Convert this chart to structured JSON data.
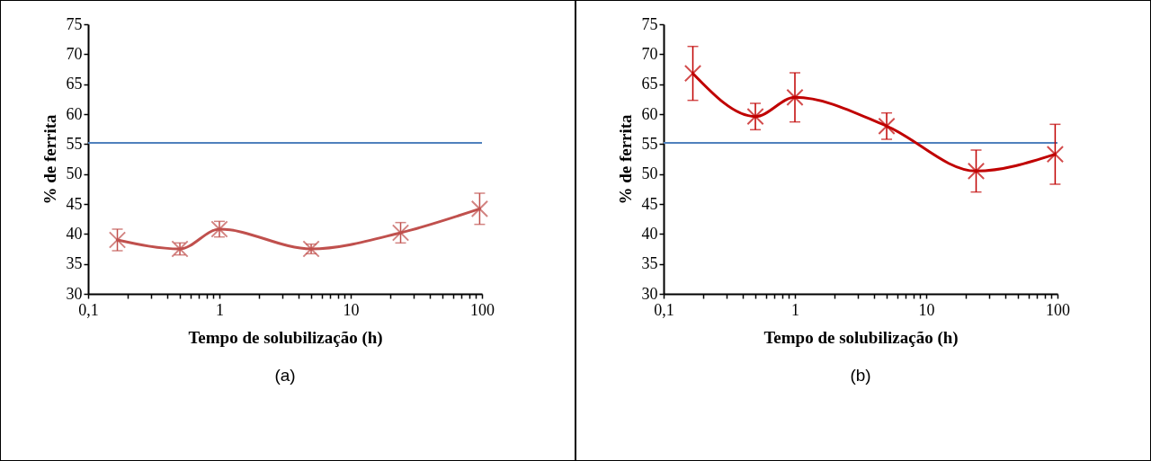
{
  "chart_data": [
    {
      "type": "line",
      "xlabel": "Tempo de solubilização (h)",
      "ylabel": "% de ferrita",
      "annotations": [
        "(a)"
      ],
      "log": "x",
      "marker": "cross",
      "line_style": "solid",
      "grid": false,
      "x": [
        0.167,
        0.5,
        1,
        5,
        24,
        96
      ],
      "series": [
        {
          "color": "#c0504d",
          "values": [
            39,
            37.5,
            40.8,
            37.5,
            40.2,
            44.2
          ],
          "errors": [
            1.8,
            1,
            1.3,
            0.8,
            1.7,
            2.6
          ]
        }
      ],
      "ref_lines": [
        {
          "axis": "y",
          "value": 55.2,
          "color": "#4f81bd"
        }
      ],
      "xlim": [
        0.1,
        100
      ],
      "xticks": [
        {
          "value": 0.1,
          "label": "0,1"
        },
        {
          "value": 0.2,
          "label": null
        },
        {
          "value": 0.3,
          "label": null
        },
        {
          "value": 0.4,
          "label": null
        },
        {
          "value": 0.5,
          "label": null
        },
        {
          "value": 0.6,
          "label": null
        },
        {
          "value": 0.7,
          "label": null
        },
        {
          "value": 0.8,
          "label": null
        },
        {
          "value": 0.9,
          "label": null
        },
        1,
        {
          "value": 2,
          "label": null
        },
        {
          "value": 3,
          "label": null
        },
        {
          "value": 4,
          "label": null
        },
        {
          "value": 5,
          "label": null
        },
        {
          "value": 6,
          "label": null
        },
        {
          "value": 7,
          "label": null
        },
        {
          "value": 8,
          "label": null
        },
        {
          "value": 9,
          "label": null
        },
        10,
        {
          "value": 20,
          "label": null
        },
        {
          "value": 30,
          "label": null
        },
        {
          "value": 40,
          "label": null
        },
        {
          "value": 50,
          "label": null
        },
        {
          "value": 60,
          "label": null
        },
        {
          "value": 70,
          "label": null
        },
        {
          "value": 80,
          "label": null
        },
        {
          "value": 90,
          "label": null
        },
        100
      ],
      "ylim": [
        30,
        75
      ],
      "yticks": [
        30,
        35,
        40,
        45,
        50,
        55,
        60,
        65,
        70,
        75
      ]
    },
    {
      "type": "line",
      "xlabel": "Tempo de solubilização (h)",
      "ylabel": "% de ferrita",
      "annotations": [
        "(b)"
      ],
      "log": "x",
      "marker": "cross",
      "line_style": "solid",
      "grid": false,
      "x": [
        0.167,
        0.5,
        1,
        5,
        24,
        96
      ],
      "series": [
        {
          "color": "#c00000",
          "values": [
            66.8,
            59.6,
            62.8,
            58,
            50.5,
            53.3
          ],
          "errors": [
            4.5,
            2.2,
            4.1,
            2.2,
            3.5,
            5
          ]
        }
      ],
      "ref_lines": [
        {
          "axis": "y",
          "value": 55.2,
          "color": "#4f81bd"
        }
      ],
      "xlim": [
        0.1,
        100
      ],
      "xticks": [
        {
          "value": 0.1,
          "label": "0,1"
        },
        {
          "value": 0.2,
          "label": null
        },
        {
          "value": 0.3,
          "label": null
        },
        {
          "value": 0.4,
          "label": null
        },
        {
          "value": 0.5,
          "label": null
        },
        {
          "value": 0.6,
          "label": null
        },
        {
          "value": 0.7,
          "label": null
        },
        {
          "value": 0.8,
          "label": null
        },
        {
          "value": 0.9,
          "label": null
        },
        1,
        {
          "value": 2,
          "label": null
        },
        {
          "value": 3,
          "label": null
        },
        {
          "value": 4,
          "label": null
        },
        {
          "value": 5,
          "label": null
        },
        {
          "value": 6,
          "label": null
        },
        {
          "value": 7,
          "label": null
        },
        {
          "value": 8,
          "label": null
        },
        {
          "value": 9,
          "label": null
        },
        10,
        {
          "value": 20,
          "label": null
        },
        {
          "value": 30,
          "label": null
        },
        {
          "value": 40,
          "label": null
        },
        {
          "value": 50,
          "label": null
        },
        {
          "value": 60,
          "label": null
        },
        {
          "value": 70,
          "label": null
        },
        {
          "value": 80,
          "label": null
        },
        {
          "value": 90,
          "label": null
        },
        100
      ],
      "ylim": [
        30,
        75
      ],
      "yticks": [
        30,
        35,
        40,
        45,
        50,
        55,
        60,
        65,
        70,
        75
      ]
    }
  ]
}
